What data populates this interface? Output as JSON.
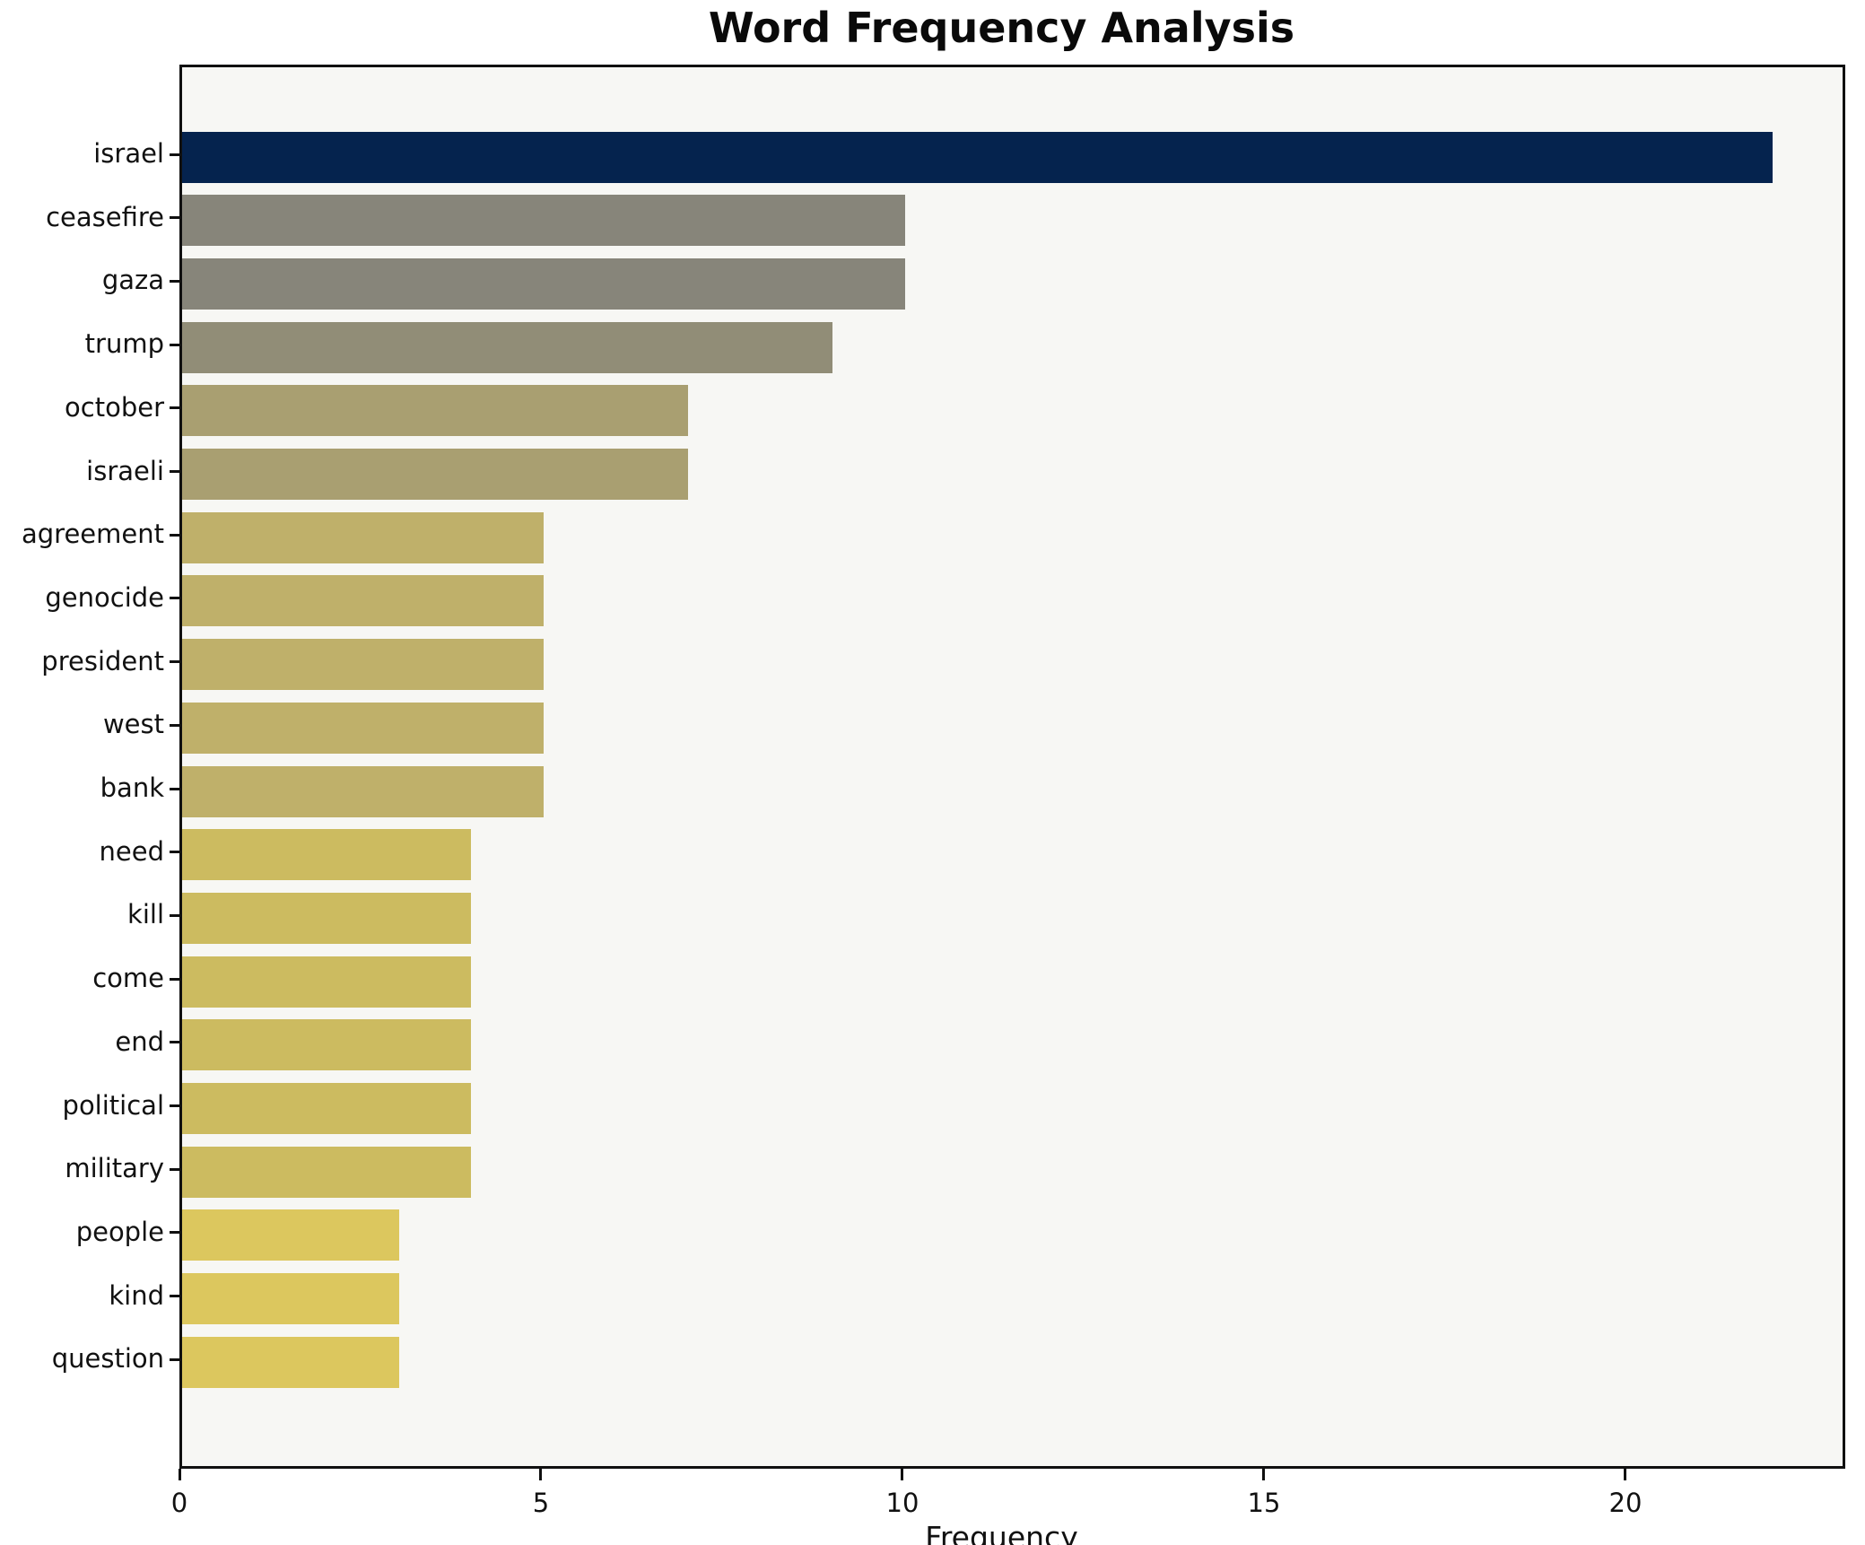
{
  "chart_data": {
    "type": "bar",
    "orientation": "horizontal",
    "title": "Word Frequency Analysis",
    "xlabel": "Frequency",
    "ylabel": "",
    "xlim": [
      0,
      23.04
    ],
    "xticks": [
      0,
      5,
      10,
      15,
      20
    ],
    "grid": false,
    "legend": "none",
    "plot_bg_color": "#f7f7f4",
    "figure_bg_color": "#ffffff",
    "spine_color": "#101010",
    "bar_color_max": "#05234e",
    "bar_color_min": "#dcc75e",
    "categories": [
      "israel",
      "ceasefire",
      "gaza",
      "trump",
      "october",
      "israeli",
      "agreement",
      "genocide",
      "president",
      "west",
      "bank",
      "need",
      "kill",
      "come",
      "end",
      "political",
      "military",
      "people",
      "kind",
      "question"
    ],
    "values": [
      22,
      10,
      10,
      9,
      7,
      7,
      5,
      5,
      5,
      5,
      5,
      4,
      4,
      4,
      4,
      4,
      4,
      3,
      3,
      3
    ],
    "bar_colors": [
      "#05234e",
      "#87857a",
      "#87857a",
      "#918d77",
      "#a99f71",
      "#a99f71",
      "#bfb06a",
      "#bfb06a",
      "#bfb06a",
      "#bfb06a",
      "#bfb06a",
      "#ccbb60",
      "#ccbb60",
      "#ccbb60",
      "#ccbb60",
      "#ccbb60",
      "#ccbb60",
      "#dcc75e",
      "#dcc75e",
      "#dcc75e"
    ]
  }
}
